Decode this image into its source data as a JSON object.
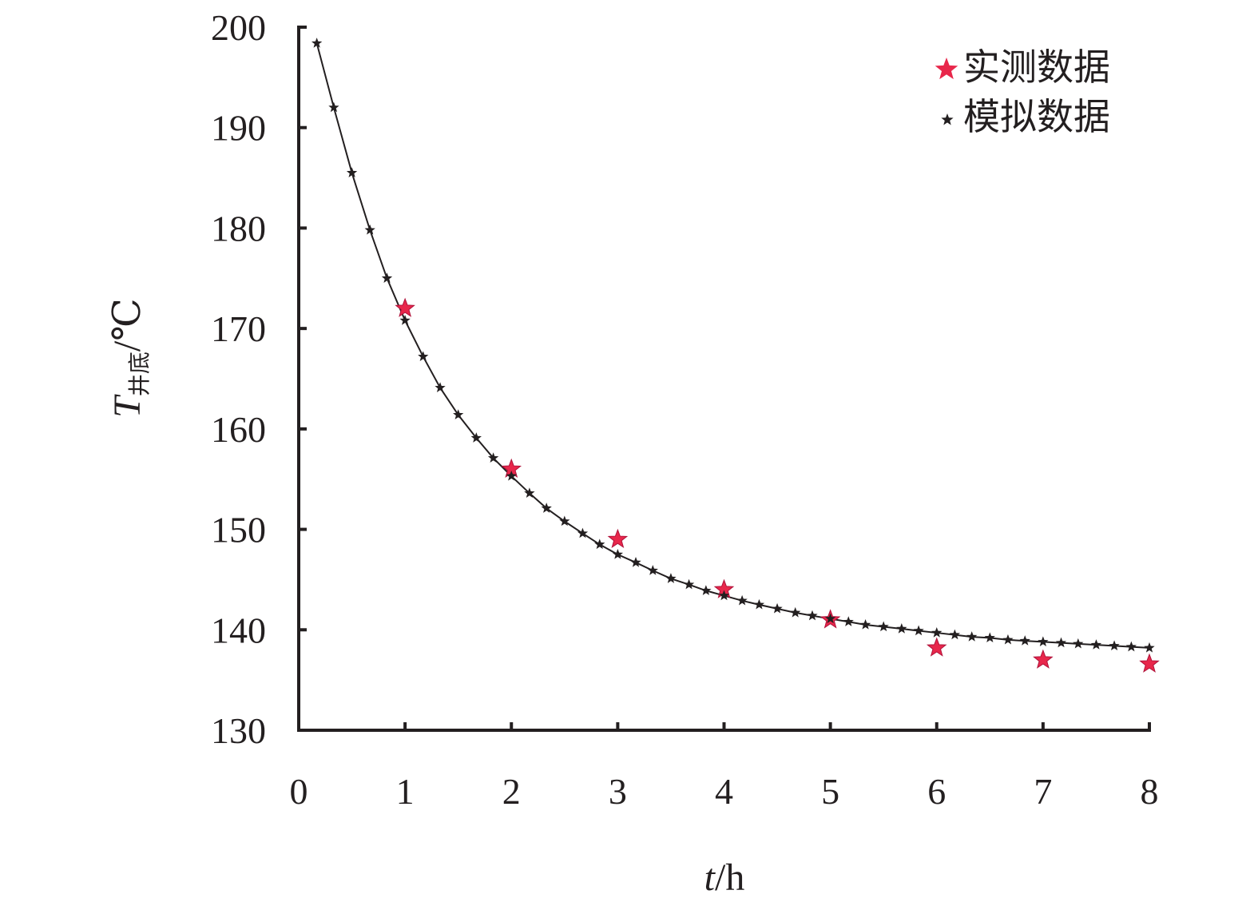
{
  "chart_data": {
    "type": "scatter",
    "xlabel": {
      "var": "t",
      "unit": "/h"
    },
    "ylabel": {
      "var": "T",
      "sub": "井底",
      "unit": "/℃"
    },
    "xlim": [
      0,
      8
    ],
    "ylim": [
      130,
      200
    ],
    "xticks": [
      "0",
      "1",
      "2",
      "3",
      "4",
      "5",
      "6",
      "7",
      "8"
    ],
    "yticks": [
      "130",
      "140",
      "150",
      "160",
      "170",
      "180",
      "190",
      "200"
    ],
    "grid": false,
    "legend_position": "top-right",
    "series": [
      {
        "name": "实测数据",
        "marker": "star",
        "color": "#e8274b",
        "x": [
          1,
          2,
          3,
          4,
          5,
          6,
          7,
          8
        ],
        "y": [
          172,
          156,
          149,
          144,
          141,
          138.2,
          137,
          136.6
        ]
      },
      {
        "name": "模拟数据",
        "marker": "star",
        "color": "#231f20",
        "with_line": true,
        "x": [
          0.17,
          0.33,
          0.5,
          0.67,
          0.83,
          1.0,
          1.17,
          1.33,
          1.5,
          1.67,
          1.83,
          2.0,
          2.17,
          2.33,
          2.5,
          2.67,
          2.83,
          3.0,
          3.17,
          3.33,
          3.5,
          3.67,
          3.83,
          4.0,
          4.17,
          4.33,
          4.5,
          4.67,
          4.83,
          5.0,
          5.17,
          5.33,
          5.5,
          5.67,
          5.83,
          6.0,
          6.17,
          6.33,
          6.5,
          6.67,
          6.83,
          7.0,
          7.17,
          7.33,
          7.5,
          7.67,
          7.83,
          8.0
        ],
        "y": [
          198.4,
          192.0,
          185.5,
          179.8,
          175.0,
          170.8,
          167.2,
          164.1,
          161.4,
          159.1,
          157.1,
          155.3,
          153.6,
          152.1,
          150.8,
          149.6,
          148.5,
          147.5,
          146.7,
          145.9,
          145.1,
          144.5,
          143.9,
          143.4,
          142.9,
          142.5,
          142.1,
          141.7,
          141.4,
          141.1,
          140.8,
          140.5,
          140.3,
          140.1,
          139.9,
          139.7,
          139.5,
          139.3,
          139.2,
          139.0,
          138.9,
          138.8,
          138.7,
          138.6,
          138.5,
          138.4,
          138.3,
          138.2
        ]
      }
    ]
  }
}
